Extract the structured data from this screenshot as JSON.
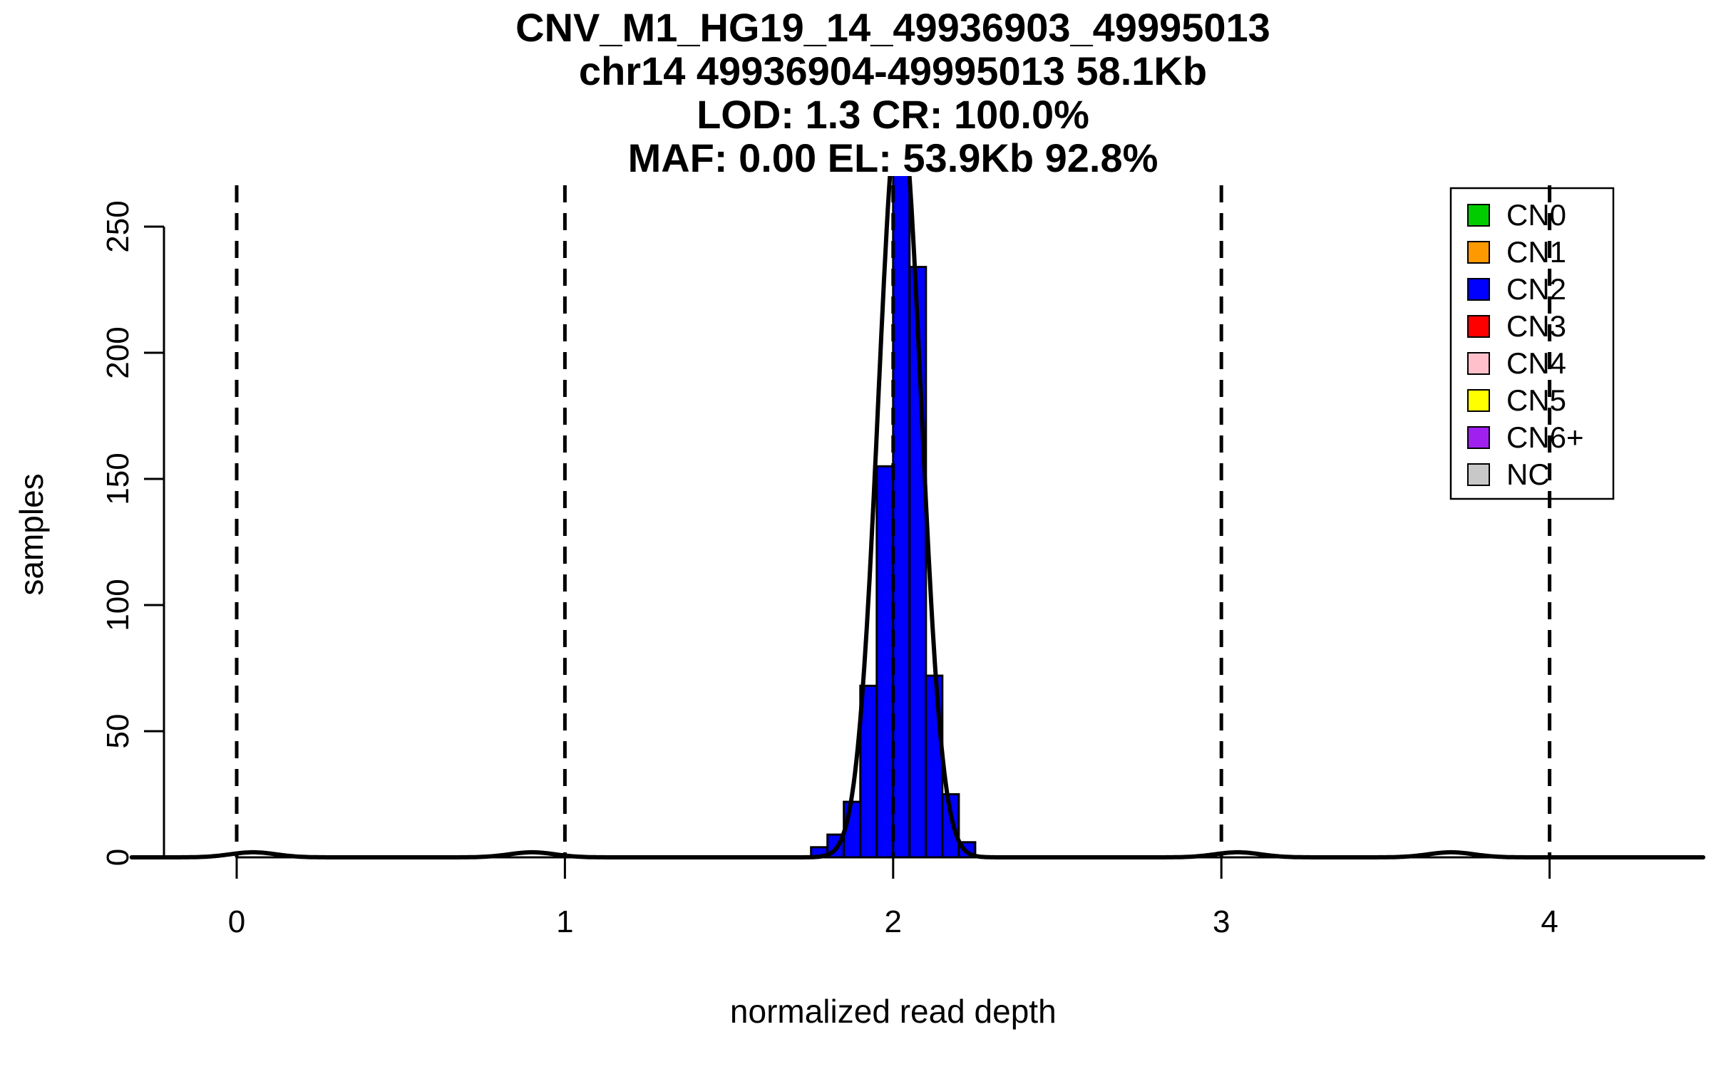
{
  "chart_data": {
    "type": "bar",
    "title_lines": [
      "CNV_M1_HG19_14_49936903_49995013",
      "chr14 49936904-49995013 58.1Kb",
      "LOD: 1.3 CR: 100.0%",
      "MAF: 0.00 EL: 53.9Kb 92.8%"
    ],
    "xlabel": "normalized read depth",
    "ylabel": "samples",
    "xlim": [
      -0.32,
      4.47
    ],
    "ylim": [
      0,
      270
    ],
    "x_ticks": [
      0,
      1,
      2,
      3,
      4
    ],
    "y_ticks": [
      0,
      50,
      100,
      150,
      200,
      250
    ],
    "copy_number_guides_x": [
      0,
      1,
      2,
      3,
      4
    ],
    "grid": false,
    "histogram": {
      "bin_width": 0.05,
      "fill_color": "#0000FF",
      "edge_color": "#000000",
      "bins": [
        {
          "from": 1.75,
          "count": 4
        },
        {
          "from": 1.8,
          "count": 9
        },
        {
          "from": 1.85,
          "count": 22
        },
        {
          "from": 1.9,
          "count": 68
        },
        {
          "from": 1.95,
          "count": 155
        },
        {
          "from": 2.0,
          "count": 272
        },
        {
          "from": 2.05,
          "count": 234
        },
        {
          "from": 2.1,
          "count": 72
        },
        {
          "from": 2.15,
          "count": 25
        },
        {
          "from": 2.2,
          "count": 6
        }
      ]
    },
    "fit_curve": {
      "type": "gaussian",
      "mean": 2.02,
      "sd": 0.065,
      "peak": 300,
      "color": "#000000",
      "minor_bumps": [
        {
          "x": 0.05,
          "height": 2
        },
        {
          "x": 0.9,
          "height": 2
        },
        {
          "x": 3.05,
          "height": 2
        },
        {
          "x": 3.7,
          "height": 2
        }
      ]
    },
    "legend": {
      "position": "top-right",
      "items": [
        {
          "label": "CN0",
          "color": "#00CC00"
        },
        {
          "label": "CN1",
          "color": "#FF9900"
        },
        {
          "label": "CN2",
          "color": "#0000FF"
        },
        {
          "label": "CN3",
          "color": "#FF0000"
        },
        {
          "label": "CN4",
          "color": "#FFC0CB"
        },
        {
          "label": "CN5",
          "color": "#FFFF00"
        },
        {
          "label": "CN6+",
          "color": "#A020F0"
        },
        {
          "label": "NC",
          "color": "#C8C8C8"
        }
      ]
    }
  }
}
